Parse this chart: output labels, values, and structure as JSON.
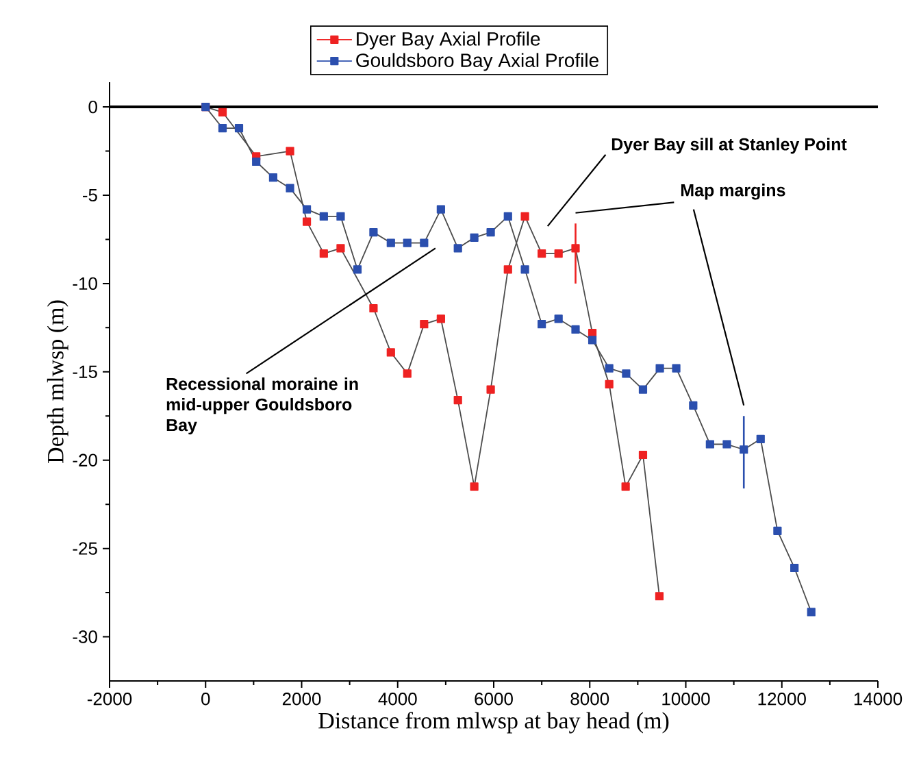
{
  "chart_data": {
    "type": "line",
    "xlabel": "Distance from mlwsp at bay head (m)",
    "ylabel": "Depth mlwsp (m)",
    "xlim": [
      -2000,
      14000
    ],
    "xticks": [
      -2000,
      0,
      2000,
      4000,
      6000,
      8000,
      10000,
      12000,
      14000
    ],
    "ylim": [
      -32.5,
      1.4
    ],
    "yticks": [
      -30,
      -25,
      -20,
      -15,
      -10,
      -5,
      0
    ],
    "marker": "square",
    "line_style": "solid",
    "legend": "top",
    "grid": false,
    "ref_lines": [
      {
        "axis": "y",
        "value": 0,
        "color": "#000000"
      }
    ],
    "annotations": [
      "Recessional moraine in mid-upper Gouldsboro Bay",
      "Dyer Bay sill at Stanley Point",
      "Map margins"
    ],
    "series": [
      {
        "name": "Dyer Bay Axial Profile",
        "color": "#ee2222",
        "x": [
          0,
          353,
          1054,
          1758,
          2108,
          2461,
          2812,
          3162,
          3496,
          3858,
          4200,
          4550,
          4900,
          5254,
          5595,
          5937,
          6296,
          6650,
          7000,
          7350,
          7704,
          8054,
          8405,
          8747,
          9108,
          9450
        ],
        "values": [
          0,
          -0.3,
          -2.8,
          -2.5,
          -6.5,
          -8.3,
          -8.0,
          null,
          -11.4,
          -13.9,
          -15.1,
          -12.3,
          -12.0,
          -16.6,
          -21.5,
          -16.0,
          -9.2,
          -6.2,
          -8.3,
          -8.3,
          -8.0,
          -12.8,
          -15.7,
          -21.5,
          -19.7,
          -27.7
        ],
        "errors": [
          null,
          null,
          null,
          null,
          null,
          null,
          null,
          null,
          null,
          null,
          null,
          null,
          null,
          null,
          null,
          null,
          null,
          null,
          null,
          null,
          [
            -10.0,
            -6.6
          ],
          null,
          null,
          null,
          null,
          null
        ]
      },
      {
        "name": "Gouldsboro Bay Axial Profile",
        "color": "#2b4fae",
        "x": [
          0,
          353,
          695,
          1054,
          1407,
          1758,
          2108,
          2461,
          2812,
          3162,
          3496,
          3858,
          4200,
          4550,
          4900,
          5254,
          5595,
          5937,
          6296,
          6650,
          7000,
          7350,
          7704,
          8054,
          8405,
          8758,
          9108,
          9459,
          9801,
          10154,
          10504,
          10855,
          11208,
          11558,
          11909,
          12262,
          12613
        ],
        "values": [
          0,
          -1.2,
          -1.2,
          -3.1,
          -4.0,
          -4.6,
          -5.8,
          -6.2,
          -6.2,
          -9.2,
          -7.1,
          -7.7,
          -7.7,
          -7.7,
          -5.8,
          -8.0,
          -7.4,
          -7.1,
          -6.2,
          -9.2,
          -12.3,
          -12.0,
          -12.6,
          -13.2,
          -14.8,
          -15.1,
          -16.0,
          -14.8,
          -14.8,
          -16.9,
          -19.1,
          -19.1,
          -19.4,
          -18.8,
          -24.0,
          -26.1,
          -28.6
        ],
        "errors": [
          null,
          null,
          null,
          null,
          null,
          null,
          null,
          null,
          null,
          null,
          null,
          null,
          null,
          null,
          null,
          null,
          null,
          null,
          null,
          null,
          null,
          null,
          null,
          null,
          null,
          null,
          null,
          null,
          null,
          null,
          null,
          null,
          [
            -21.6,
            -17.5
          ],
          null,
          null,
          null,
          null
        ]
      }
    ]
  }
}
